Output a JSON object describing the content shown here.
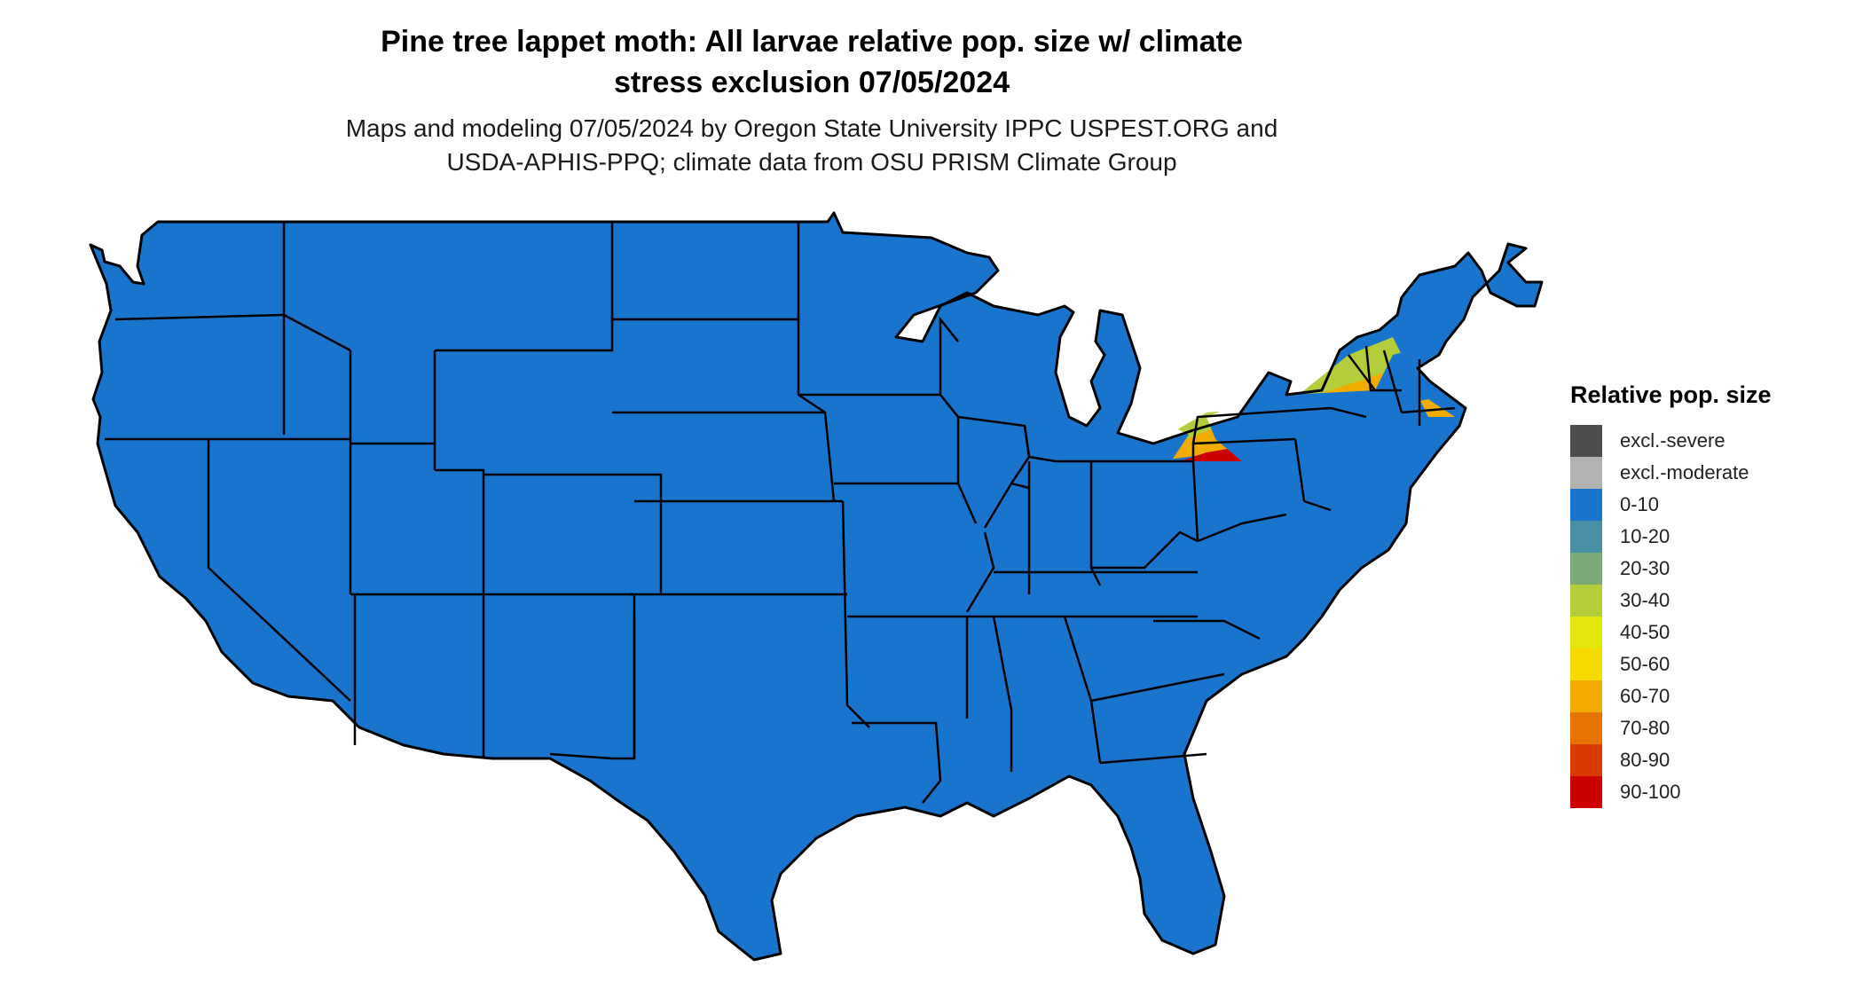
{
  "header": {
    "title_line1": "Pine tree lappet moth: All larvae relative pop. size w/ climate",
    "title_line2": "stress exclusion 07/05/2024",
    "subtitle_line1": "Maps and modeling 07/05/2024 by Oregon State University IPPC USPEST.ORG and",
    "subtitle_line2": "USDA-APHIS-PPQ; climate data from OSU PRISM Climate Group"
  },
  "legend": {
    "title": "Relative pop. size",
    "items": [
      {
        "label": "excl.-severe",
        "color": "#4d4d4d"
      },
      {
        "label": "excl.-moderate",
        "color": "#b3b3b3"
      },
      {
        "label": "0-10",
        "color": "#1874cd"
      },
      {
        "label": "10-20",
        "color": "#4a90a4"
      },
      {
        "label": "20-30",
        "color": "#7aab75"
      },
      {
        "label": "30-40",
        "color": "#b3cd3b"
      },
      {
        "label": "40-50",
        "color": "#e3e60d"
      },
      {
        "label": "50-60",
        "color": "#f6da00"
      },
      {
        "label": "60-70",
        "color": "#f2ab00"
      },
      {
        "label": "70-80",
        "color": "#e67300"
      },
      {
        "label": "80-90",
        "color": "#da3a00"
      },
      {
        "label": "90-100",
        "color": "#cd0000"
      }
    ]
  }
}
